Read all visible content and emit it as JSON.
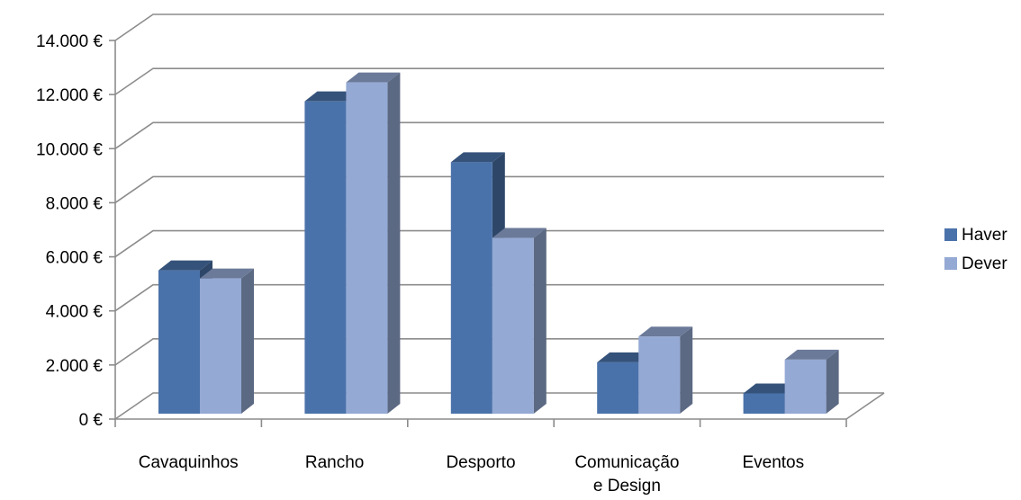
{
  "chart_data": {
    "type": "bar",
    "subtype": "3d-clustered-column",
    "title": "",
    "xlabel": "",
    "ylabel": "",
    "categories": [
      [
        "Cavaquinhos"
      ],
      [
        "Rancho"
      ],
      [
        "Desporto"
      ],
      [
        "Comunicação",
        "e Design"
      ],
      [
        "Eventos"
      ]
    ],
    "series": [
      {
        "name": "Haver",
        "color": "#4A72AA",
        "values": [
          5300,
          11550,
          9300,
          1900,
          750
        ]
      },
      {
        "name": "Dever",
        "color": "#94A9D4",
        "values": [
          5000,
          12250,
          6500,
          2850,
          2000
        ]
      }
    ],
    "ylim": [
      0,
      14000
    ],
    "ytick_step": 2000,
    "ytick_labels": [
      "0 €",
      "2.000 €",
      "4.000 €",
      "6.000 €",
      "8.000 €",
      "10.000 €",
      "12.000 €",
      "14.000 €"
    ],
    "grid": true,
    "legend_position": "right"
  }
}
